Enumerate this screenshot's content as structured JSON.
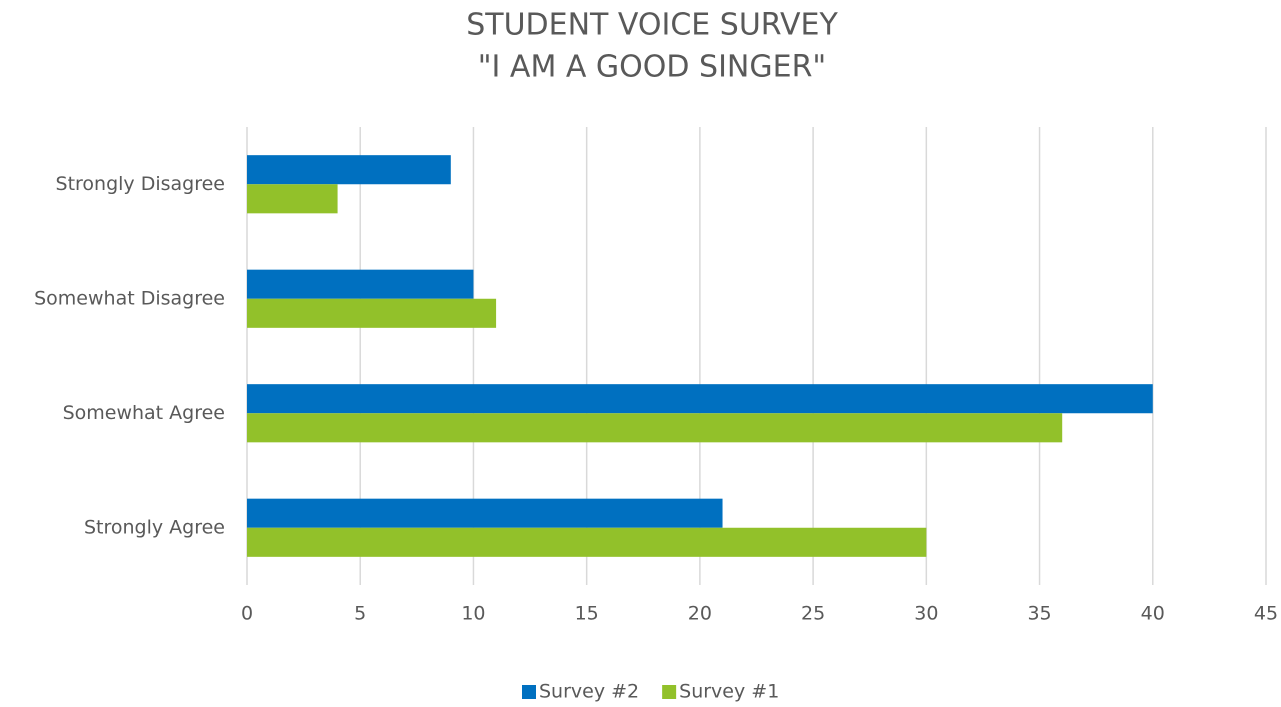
{
  "chart_data": {
    "type": "hbar",
    "title": [
      "STUDENT VOICE SURVEY",
      "\"I AM A GOOD SINGER\""
    ],
    "categories": [
      "Strongly Disagree",
      "Somewhat Disagree",
      "Somewhat Agree",
      "Strongly Agree"
    ],
    "series": [
      {
        "name": "Survey #2",
        "color": "#0070c0",
        "values": [
          9,
          10,
          40,
          21
        ]
      },
      {
        "name": "Survey #1",
        "color": "#92c12a",
        "values": [
          4,
          11,
          36,
          30
        ]
      }
    ],
    "xlim": [
      0,
      45
    ],
    "xticks": [
      0,
      5,
      10,
      15,
      20,
      25,
      30,
      35,
      40,
      45
    ],
    "grid": true,
    "legend": "bottom"
  }
}
